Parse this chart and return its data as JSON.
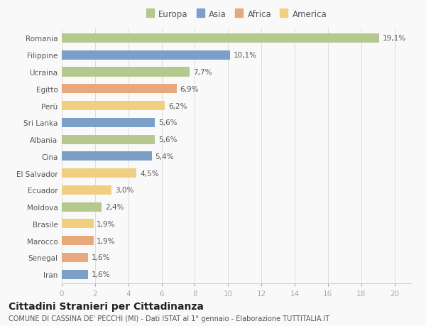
{
  "countries": [
    "Romania",
    "Filippine",
    "Ucraina",
    "Egitto",
    "Perù",
    "Sri Lanka",
    "Albania",
    "Cina",
    "El Salvador",
    "Ecuador",
    "Moldova",
    "Brasile",
    "Marocco",
    "Senegal",
    "Iran"
  ],
  "values": [
    19.1,
    10.1,
    7.7,
    6.9,
    6.2,
    5.6,
    5.6,
    5.4,
    4.5,
    3.0,
    2.4,
    1.9,
    1.9,
    1.6,
    1.6
  ],
  "labels": [
    "19,1%",
    "10,1%",
    "7,7%",
    "6,9%",
    "6,2%",
    "5,6%",
    "5,6%",
    "5,4%",
    "4,5%",
    "3,0%",
    "2,4%",
    "1,9%",
    "1,9%",
    "1,6%",
    "1,6%"
  ],
  "continents": [
    "Europa",
    "Asia",
    "Europa",
    "Africa",
    "America",
    "Asia",
    "Europa",
    "Asia",
    "America",
    "America",
    "Europa",
    "America",
    "Africa",
    "Africa",
    "Asia"
  ],
  "colors": {
    "Europa": "#b5c98e",
    "Asia": "#7b9fc7",
    "Africa": "#e8a87c",
    "America": "#f0d080"
  },
  "legend_order": [
    "Europa",
    "Asia",
    "Africa",
    "America"
  ],
  "xlim": [
    0,
    21
  ],
  "xticks": [
    0,
    2,
    4,
    6,
    8,
    10,
    12,
    14,
    16,
    18,
    20
  ],
  "title": "Cittadini Stranieri per Cittadinanza",
  "subtitle": "COMUNE DI CASSINA DE' PECCHI (MI) - Dati ISTAT al 1° gennaio - Elaborazione TUTTITALIA.IT",
  "background_color": "#f9f9f9",
  "bar_height": 0.55,
  "label_fontsize": 7.5,
  "tick_fontsize": 7.5,
  "title_fontsize": 10,
  "subtitle_fontsize": 7,
  "legend_fontsize": 8.5
}
